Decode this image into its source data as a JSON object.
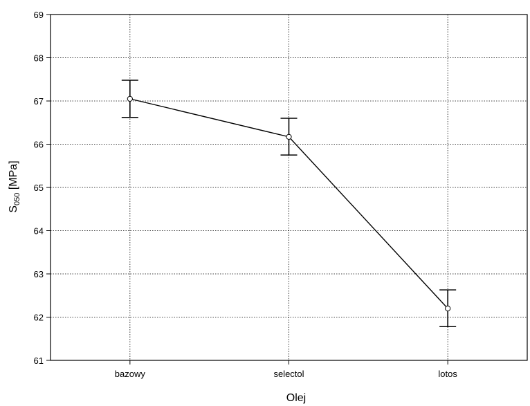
{
  "chart_data": {
    "type": "line",
    "categories": [
      "bazowy",
      "selectol",
      "lotos"
    ],
    "series": [
      {
        "values": [
          67.05,
          66.17,
          62.2
        ],
        "error_low": [
          66.62,
          65.75,
          61.78
        ],
        "error_high": [
          67.48,
          66.6,
          62.63
        ]
      }
    ],
    "xlabel": "Olej",
    "ylabel": {
      "base": "S",
      "subscript": "050",
      "unit": " [MPa]"
    },
    "ylim": [
      61,
      69
    ],
    "yticks": [
      "61",
      "62",
      "63",
      "64",
      "65",
      "66",
      "67",
      "68",
      "69"
    ],
    "grid": true,
    "colors": {
      "line": "#000000",
      "grid": "#000000",
      "marker_fill": "#ffffff"
    }
  }
}
